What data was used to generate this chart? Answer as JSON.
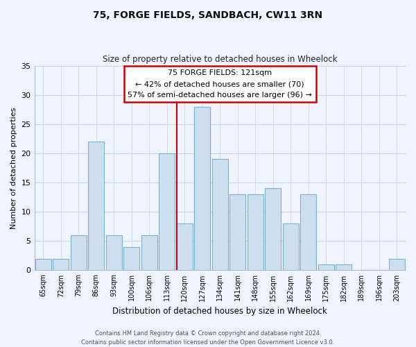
{
  "title": "75, FORGE FIELDS, SANDBACH, CW11 3RN",
  "subtitle": "Size of property relative to detached houses in Wheelock",
  "xlabel": "Distribution of detached houses by size in Wheelock",
  "ylabel": "Number of detached properties",
  "bar_labels": [
    "65sqm",
    "72sqm",
    "79sqm",
    "86sqm",
    "93sqm",
    "100sqm",
    "106sqm",
    "113sqm",
    "120sqm",
    "127sqm",
    "134sqm",
    "141sqm",
    "148sqm",
    "155sqm",
    "162sqm",
    "169sqm",
    "175sqm",
    "182sqm",
    "189sqm",
    "196sqm",
    "203sqm"
  ],
  "bar_values": [
    2,
    2,
    6,
    22,
    6,
    4,
    6,
    20,
    8,
    28,
    19,
    13,
    13,
    14,
    8,
    13,
    1,
    1,
    0,
    0,
    2
  ],
  "bar_color": "#cce0f0",
  "bar_edge_color": "#7ab0d0",
  "highlight_index": 8,
  "highlight_line_color": "#cc0000",
  "ylim": [
    0,
    35
  ],
  "yticks": [
    0,
    5,
    10,
    15,
    20,
    25,
    30,
    35
  ],
  "annotation_title": "75 FORGE FIELDS: 121sqm",
  "annotation_line1": "← 42% of detached houses are smaller (70)",
  "annotation_line2": "57% of semi-detached houses are larger (96) →",
  "annotation_box_color": "#ffffff",
  "annotation_box_edge_color": "#cc0000",
  "footer_line1": "Contains HM Land Registry data © Crown copyright and database right 2024.",
  "footer_line2": "Contains public sector information licensed under the Open Government Licence v3.0.",
  "bg_color": "#f0f4ff",
  "grid_color": "#c8d4e8"
}
